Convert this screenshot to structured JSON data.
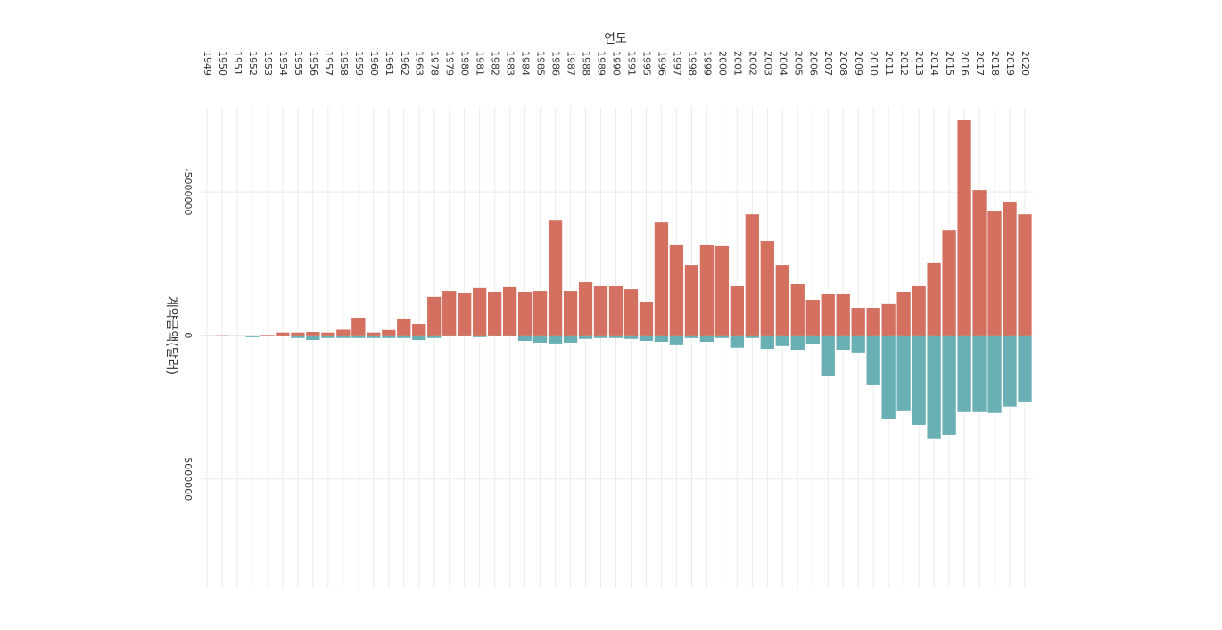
{
  "chart_data": {
    "type": "bar",
    "title": "연도",
    "y_label": "계약금액(달러)",
    "categories": [
      "1949",
      "1950",
      "1951",
      "1952",
      "1953",
      "1954",
      "1955",
      "1956",
      "1957",
      "1958",
      "1959",
      "1960",
      "1961",
      "1962",
      "1963",
      "1978",
      "1979",
      "1980",
      "1981",
      "1982",
      "1983",
      "1984",
      "1985",
      "1986",
      "1987",
      "1988",
      "1989",
      "1990",
      "1991",
      "1995",
      "1996",
      "1997",
      "1998",
      "1999",
      "2000",
      "2001",
      "2002",
      "2003",
      "2004",
      "2005",
      "2006",
      "2007",
      "2008",
      "2009",
      "2010",
      "2011",
      "2012",
      "2013",
      "2014",
      "2015",
      "2016",
      "2017",
      "2018",
      "2019",
      "2020"
    ],
    "series": [
      {
        "color": "#d4705f",
        "values": [
          0,
          -10000,
          0,
          0,
          -20000,
          -100000,
          -100000,
          -120000,
          -100000,
          -200000,
          -620000,
          -100000,
          -190000,
          -590000,
          -400000,
          -1340000,
          -1550000,
          -1490000,
          -1650000,
          -1520000,
          -1680000,
          -1520000,
          -1550000,
          -4000000,
          -1550000,
          -1860000,
          -1740000,
          -1710000,
          -1610000,
          -1180000,
          -3940000,
          -3170000,
          -2450000,
          -3170000,
          -3110000,
          -1710000,
          -4220000,
          -3290000,
          -2450000,
          -1800000,
          -1240000,
          -1430000,
          -1460000,
          -960000,
          -960000,
          -1090000,
          -1520000,
          -1740000,
          -2520000,
          -3660000,
          -7520000,
          -5060000,
          -4320000,
          -4660000,
          -4220000
        ]
      },
      {
        "color": "#6aafb3",
        "values": [
          30000,
          30000,
          30000,
          60000,
          0,
          0,
          90000,
          160000,
          90000,
          90000,
          90000,
          90000,
          90000,
          90000,
          160000,
          90000,
          30000,
          30000,
          60000,
          30000,
          30000,
          190000,
          250000,
          280000,
          250000,
          120000,
          90000,
          90000,
          120000,
          190000,
          220000,
          340000,
          90000,
          220000,
          90000,
          430000,
          90000,
          470000,
          370000,
          500000,
          310000,
          1400000,
          500000,
          620000,
          1710000,
          2920000,
          2640000,
          3110000,
          3600000,
          3450000,
          2670000,
          2670000,
          2700000,
          2480000,
          2300000
        ]
      }
    ],
    "ylim": [
      -7800000,
      8800000
    ],
    "yticks": [
      -5000000,
      0,
      5000000
    ],
    "grid": true
  }
}
